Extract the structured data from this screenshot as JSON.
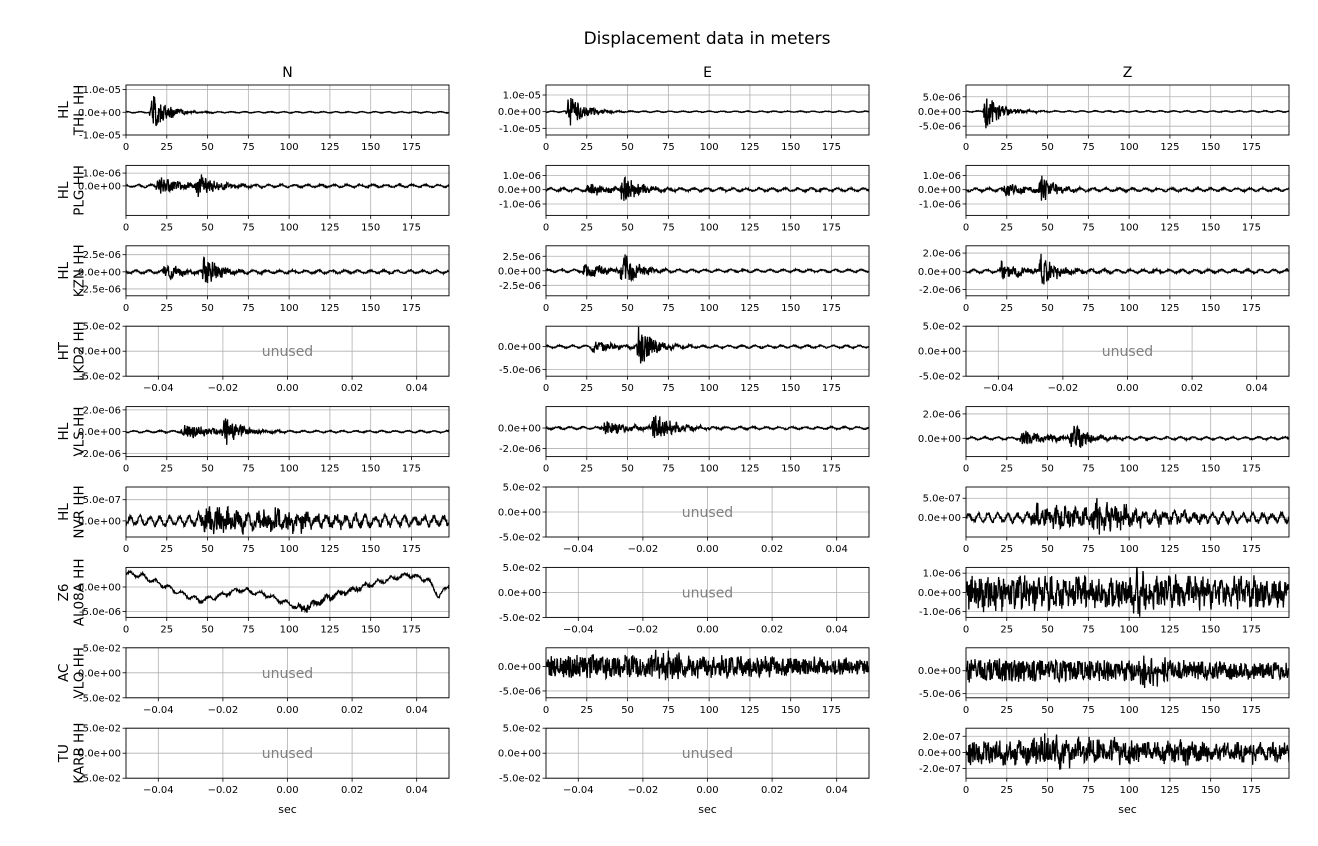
{
  "chart_data": {
    "type": "line",
    "title": "Displacement data in meters",
    "columns": [
      "N",
      "E",
      "Z"
    ],
    "xlabel": "sec",
    "unused_label": "unused",
    "grid": true,
    "line_color": "#000000",
    "unused_text_color": "#808080",
    "grid_color": "#b0b0b0",
    "stations": [
      {
        "net": "HL",
        "name": "THL HH"
      },
      {
        "net": "HL",
        "name": "PLG HH"
      },
      {
        "net": "HL",
        "name": "KZN HH"
      },
      {
        "net": "HT",
        "name": "LKD2 HH"
      },
      {
        "net": "HL",
        "name": "VLS HH"
      },
      {
        "net": "HL",
        "name": "NVR HH"
      },
      {
        "net": "Z6",
        "name": "AL08A HH"
      },
      {
        "net": "AC",
        "name": "VLO HH"
      },
      {
        "net": "TU",
        "name": "KARB HH"
      }
    ],
    "data_xlim": [
      0,
      198
    ],
    "data_xticks": [
      0,
      25,
      50,
      75,
      100,
      125,
      150,
      175
    ],
    "unused_xlim": [
      -0.05,
      0.05
    ],
    "unused_xticks": [
      -0.04,
      -0.02,
      0.0,
      0.02,
      0.04
    ],
    "unused_xtick_labels": [
      "−0.04",
      "−0.02",
      "0.00",
      "0.02",
      "0.04"
    ],
    "unused_ylim": [
      -0.05,
      0.05
    ],
    "unused_yticks": [
      -0.05,
      0,
      0.05
    ],
    "unused_ytick_labels": [
      "-5.0e-02",
      "0.0e+00",
      "5.0e-02"
    ],
    "panels": [
      [
        {
          "used": true,
          "ylim": [
            -1e-05,
            1.2e-05
          ],
          "yticks": [
            -1e-05,
            0,
            1e-05
          ],
          "ytick_labels": [
            "-1.0e-05",
            "0.0e+00",
            "1.0e-05"
          ],
          "wave": {
            "noise": 3e-07,
            "events": [
              {
                "t": 14,
                "amp": 1.1e-05,
                "decay": 9,
                "rise": 2
              }
            ],
            "seed": 1
          }
        },
        {
          "used": true,
          "ylim": [
            -2.3e-06,
            1.6e-06
          ],
          "yticks": [
            0,
            1e-06
          ],
          "ytick_labels": [
            "0.0e+00",
            "1.0e-06"
          ],
          "wave": {
            "noise": 1.2e-07,
            "events": [
              {
                "t": 18,
                "amp": 9e-07,
                "decay": 14,
                "rise": 2
              },
              {
                "t": 42,
                "amp": 1.5e-06,
                "decay": 10,
                "rise": 3
              }
            ],
            "seed": 2
          }
        },
        {
          "used": true,
          "ylim": [
            -3.5e-06,
            3.8e-06
          ],
          "yticks": [
            -2.5e-06,
            0,
            2.5e-06
          ],
          "ytick_labels": [
            "-2.5e-06",
            "0.0e+00",
            "2.5e-06"
          ],
          "wave": {
            "noise": 2.5e-07,
            "events": [
              {
                "t": 22,
                "amp": 1.4e-06,
                "decay": 12,
                "rise": 2
              },
              {
                "t": 46,
                "amp": 3.2e-06,
                "decay": 8,
                "rise": 2
              }
            ],
            "seed": 3
          }
        },
        {
          "used": false
        },
        {
          "used": true,
          "ylim": [
            -2.3e-06,
            2.3e-06
          ],
          "yticks": [
            -2e-06,
            0,
            2e-06
          ],
          "ytick_labels": [
            "-2.0e-06",
            "0.0e+00",
            "2.0e-06"
          ],
          "wave": {
            "noise": 1e-07,
            "events": [
              {
                "t": 33,
                "amp": 9e-07,
                "decay": 16,
                "rise": 3
              },
              {
                "t": 58,
                "amp": 1.9e-06,
                "decay": 10,
                "rise": 3
              }
            ],
            "seed": 4
          }
        },
        {
          "used": true,
          "ylim": [
            -3.8e-07,
            8e-07
          ],
          "yticks": [
            0,
            5e-07
          ],
          "ytick_labels": [
            "0.0e+00",
            "5.0e-07"
          ],
          "wave": {
            "noise": 1.2e-07,
            "events": [
              {
                "t": 42,
                "amp": 3e-07,
                "decay": 60,
                "rise": 5
              },
              {
                "t": 80,
                "amp": 3.5e-07,
                "decay": 25,
                "rise": 3
              }
            ],
            "seed": 5,
            "period": 6
          }
        },
        {
          "used": true,
          "ylim": [
            -6.2e-06,
            4e-06
          ],
          "yticks": [
            -5e-06,
            0
          ],
          "ytick_labels": [
            "-5.0e-06",
            "0.0e+00"
          ],
          "wave": {
            "noise": 5e-07,
            "events": [
              {
                "t": 100,
                "amp": 9e-07,
                "decay": 40,
                "rise": 10
              }
            ],
            "seed": 6,
            "trend": [
              [
                0,
                2.8e-06
              ],
              [
                10,
                2.3e-06
              ],
              [
                25,
                0
              ],
              [
                45,
                -2.8e-06
              ],
              [
                55,
                -2e-06
              ],
              [
                70,
                -5e-07
              ],
              [
                85,
                -1.5e-06
              ],
              [
                108,
                -4.5e-06
              ],
              [
                125,
                -2e-06
              ],
              [
                150,
                6e-07
              ],
              [
                172,
                2.5e-06
              ],
              [
                185,
                1.5e-06
              ],
              [
                192,
                -2e-06
              ],
              [
                198,
                6e-07
              ]
            ]
          }
        },
        {
          "used": false
        },
        {
          "used": false
        }
      ],
      [
        {
          "used": true,
          "ylim": [
            -1.4e-05,
            1.6e-05
          ],
          "yticks": [
            -1e-05,
            0,
            1e-05
          ],
          "ytick_labels": [
            "-1.0e-05",
            "0.0e+00",
            "1.0e-05"
          ],
          "wave": {
            "noise": 4e-07,
            "events": [
              {
                "t": 12,
                "amp": 1.3e-05,
                "decay": 9,
                "rise": 2
              }
            ],
            "seed": 11
          }
        },
        {
          "used": true,
          "ylim": [
            -1.8e-06,
            1.7e-06
          ],
          "yticks": [
            -1e-06,
            0,
            1e-06
          ],
          "ytick_labels": [
            "-1.0e-06",
            "0.0e+00",
            "1.0e-06"
          ],
          "wave": {
            "noise": 1.2e-07,
            "events": [
              {
                "t": 24,
                "amp": 5e-07,
                "decay": 14,
                "rise": 2
              },
              {
                "t": 45,
                "amp": 1.5e-06,
                "decay": 9,
                "rise": 2
              }
            ],
            "seed": 12
          }
        },
        {
          "used": true,
          "ylim": [
            -4.3e-06,
            4.3e-06
          ],
          "yticks": [
            -2.5e-06,
            0,
            2.5e-06
          ],
          "ytick_labels": [
            "-2.5e-06",
            "0.0e+00",
            "2.5e-06"
          ],
          "wave": {
            "noise": 2.5e-07,
            "events": [
              {
                "t": 22,
                "amp": 1.6e-06,
                "decay": 14,
                "rise": 2
              },
              {
                "t": 45,
                "amp": 3.8e-06,
                "decay": 9,
                "rise": 2
              }
            ],
            "seed": 13
          }
        },
        {
          "used": true,
          "ylim": [
            -6.5e-06,
            4.5e-06
          ],
          "yticks": [
            -5e-06,
            0
          ],
          "ytick_labels": [
            "-5.0e-06",
            "0.0e+00"
          ],
          "wave": {
            "noise": 3e-07,
            "events": [
              {
                "t": 27,
                "amp": 1.4e-06,
                "decay": 14,
                "rise": 2
              },
              {
                "t": 55,
                "amp": 5.5e-06,
                "decay": 9,
                "rise": 2
              }
            ],
            "seed": 14
          }
        },
        {
          "used": true,
          "ylim": [
            -2.8e-06,
            2.1e-06
          ],
          "yticks": [
            -2e-06,
            0
          ],
          "ytick_labels": [
            "-2.0e-06",
            "0.0e+00"
          ],
          "wave": {
            "noise": 1.3e-07,
            "events": [
              {
                "t": 33,
                "amp": 8e-07,
                "decay": 18,
                "rise": 3
              },
              {
                "t": 64,
                "amp": 1.9e-06,
                "decay": 12,
                "rise": 3
              }
            ],
            "seed": 15
          }
        },
        {
          "used": false
        },
        {
          "used": false
        },
        {
          "used": true,
          "ylim": [
            -6.4e-06,
            3.8e-06
          ],
          "yticks": [
            -5e-06,
            0
          ],
          "ytick_labels": [
            "-5.0e-06",
            "0.0e+00"
          ],
          "wave": {
            "noise": 3e-07,
            "events": [
              {
                "t": 0,
                "amp": 2.4e-06,
                "decay": 400,
                "rise": 1
              },
              {
                "t": 60,
                "amp": 1.8e-06,
                "decay": 60,
                "rise": 5
              }
            ],
            "seed": 16,
            "period": 5
          }
        },
        {
          "used": false
        }
      ],
      [
        {
          "used": true,
          "ylim": [
            -8e-06,
            9e-06
          ],
          "yticks": [
            -5e-06,
            0,
            5e-06
          ],
          "ytick_labels": [
            "-5.0e-06",
            "0.0e+00",
            "5.0e-06"
          ],
          "wave": {
            "noise": 2.5e-07,
            "events": [
              {
                "t": 10,
                "amp": 7e-06,
                "decay": 10,
                "rise": 2
              }
            ],
            "seed": 21
          }
        },
        {
          "used": true,
          "ylim": [
            -1.8e-06,
            1.7e-06
          ],
          "yticks": [
            -1e-06,
            0,
            1e-06
          ],
          "ytick_labels": [
            "-1.0e-06",
            "0.0e+00",
            "1.0e-06"
          ],
          "wave": {
            "noise": 1.2e-07,
            "events": [
              {
                "t": 21,
                "amp": 6e-07,
                "decay": 14,
                "rise": 2
              },
              {
                "t": 44,
                "amp": 1.4e-06,
                "decay": 8,
                "rise": 2
              }
            ],
            "seed": 22
          }
        },
        {
          "used": true,
          "ylim": [
            -2.7e-06,
            2.8e-06
          ],
          "yticks": [
            -2e-06,
            0,
            2e-06
          ],
          "ytick_labels": [
            "-2.0e-06",
            "0.0e+00",
            "2.0e-06"
          ],
          "wave": {
            "noise": 2e-07,
            "events": [
              {
                "t": 20,
                "amp": 1.2e-06,
                "decay": 14,
                "rise": 2
              },
              {
                "t": 44,
                "amp": 2.5e-06,
                "decay": 9,
                "rise": 2
              }
            ],
            "seed": 23
          }
        },
        {
          "used": false
        },
        {
          "used": true,
          "ylim": [
            -1.5e-06,
            2.6e-06
          ],
          "yticks": [
            0,
            2e-06
          ],
          "ytick_labels": [
            "0.0e+00",
            "2.0e-06"
          ],
          "wave": {
            "noise": 1.2e-07,
            "events": [
              {
                "t": 32,
                "amp": 7e-07,
                "decay": 18,
                "rise": 3
              },
              {
                "t": 62,
                "amp": 1.6e-06,
                "decay": 10,
                "rise": 3
              }
            ],
            "seed": 24
          }
        },
        {
          "used": true,
          "ylim": [
            -5e-07,
            7.9e-07
          ],
          "yticks": [
            0,
            5e-07
          ],
          "ytick_labels": [
            "0.0e+00",
            "5.0e-07"
          ],
          "wave": {
            "noise": 1.2e-07,
            "events": [
              {
                "t": 38,
                "amp": 3e-07,
                "decay": 70,
                "rise": 5
              },
              {
                "t": 76,
                "amp": 4.5e-07,
                "decay": 20,
                "rise": 3
              }
            ],
            "seed": 25,
            "period": 6
          }
        },
        {
          "used": true,
          "ylim": [
            -1.3e-06,
            1.3e-06
          ],
          "yticks": [
            -1e-06,
            0,
            1e-06
          ],
          "ytick_labels": [
            "-1.0e-06",
            "0.0e+00",
            "1.0e-06"
          ],
          "wave": {
            "noise": 3e-07,
            "events": [
              {
                "t": 0,
                "amp": 8e-07,
                "decay": 500,
                "rise": 1
              },
              {
                "t": 100,
                "amp": 6e-07,
                "decay": 40,
                "rise": 3
              }
            ],
            "seed": 26,
            "period": 4
          }
        },
        {
          "used": true,
          "ylim": [
            -5.9e-06,
            5e-06
          ],
          "yticks": [
            -5e-06,
            0
          ],
          "ytick_labels": [
            "-5.0e-06",
            "0.0e+00"
          ],
          "wave": {
            "noise": 3e-07,
            "events": [
              {
                "t": 0,
                "amp": 2.5e-06,
                "decay": 500,
                "rise": 1
              },
              {
                "t": 105,
                "amp": 3e-06,
                "decay": 20,
                "rise": 3
              }
            ],
            "seed": 27,
            "period": 5
          }
        },
        {
          "used": true,
          "ylim": [
            -3.2e-07,
            3e-07
          ],
          "yticks": [
            -2e-07,
            0,
            2e-07
          ],
          "ytick_labels": [
            "-2.0e-07",
            "0.0e+00",
            "2.0e-07"
          ],
          "wave": {
            "noise": 5e-08,
            "events": [
              {
                "t": 0,
                "amp": 1.3e-07,
                "decay": 500,
                "rise": 1
              },
              {
                "t": 40,
                "amp": 1e-07,
                "decay": 90,
                "rise": 3
              },
              {
                "t": 175,
                "amp": 1e-07,
                "decay": 8,
                "rise": 1
              }
            ],
            "seed": 28,
            "period": 7
          }
        }
      ]
    ]
  }
}
